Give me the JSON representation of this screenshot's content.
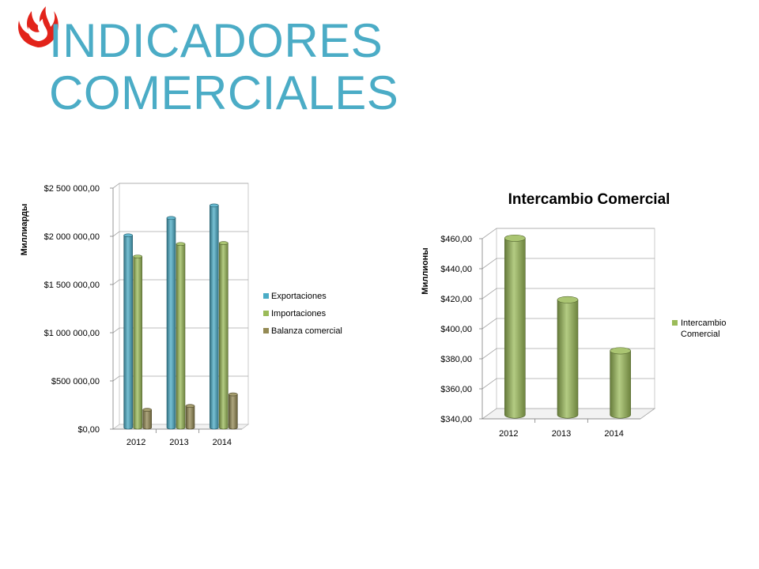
{
  "slide": {
    "title_line1": "INDICADORES",
    "title_line2": "COMERCIALES",
    "logo_icon": "flame-logo-icon",
    "logo_color": "#e2231a",
    "title_color": "#4bacc6"
  },
  "chart_data": [
    {
      "type": "bar",
      "title": "",
      "ylabel": "Миллиарды",
      "xlabel": "",
      "categories": [
        "2012",
        "2013",
        "2014"
      ],
      "series": [
        {
          "name": "Exportaciones",
          "color": "#4bacc6",
          "values": [
            2010000,
            2190000,
            2320000
          ]
        },
        {
          "name": "Importaciones",
          "color": "#9bbb59",
          "values": [
            1790000,
            1920000,
            1930000
          ]
        },
        {
          "name": "Balanza comercial",
          "color": "#948a54",
          "values": [
            200000,
            240000,
            360000
          ]
        }
      ],
      "ylim": [
        0,
        2500000
      ],
      "yticks": [
        "$0,00",
        "$500 000,00",
        "$1 000 000,00",
        "$1 500 000,00",
        "$2 000 000,00",
        "$2 500 000,00"
      ],
      "grid": true,
      "legend_position": "right"
    },
    {
      "type": "bar",
      "title": "Intercambio Comercial",
      "ylabel": "Миллионы",
      "xlabel": "",
      "categories": [
        "2012",
        "2013",
        "2014"
      ],
      "series": [
        {
          "name": "Intercambio Comercial",
          "legend_lines": [
            "Intercambio",
            "Comercial"
          ],
          "color": "#9bbb59",
          "values": [
            459,
            418,
            384
          ]
        }
      ],
      "ylim": [
        340,
        460
      ],
      "yticks": [
        "$340,00",
        "$360,00",
        "$380,00",
        "$400,00",
        "$420,00",
        "$440,00",
        "$460,00"
      ],
      "grid": true,
      "legend_position": "right"
    }
  ]
}
